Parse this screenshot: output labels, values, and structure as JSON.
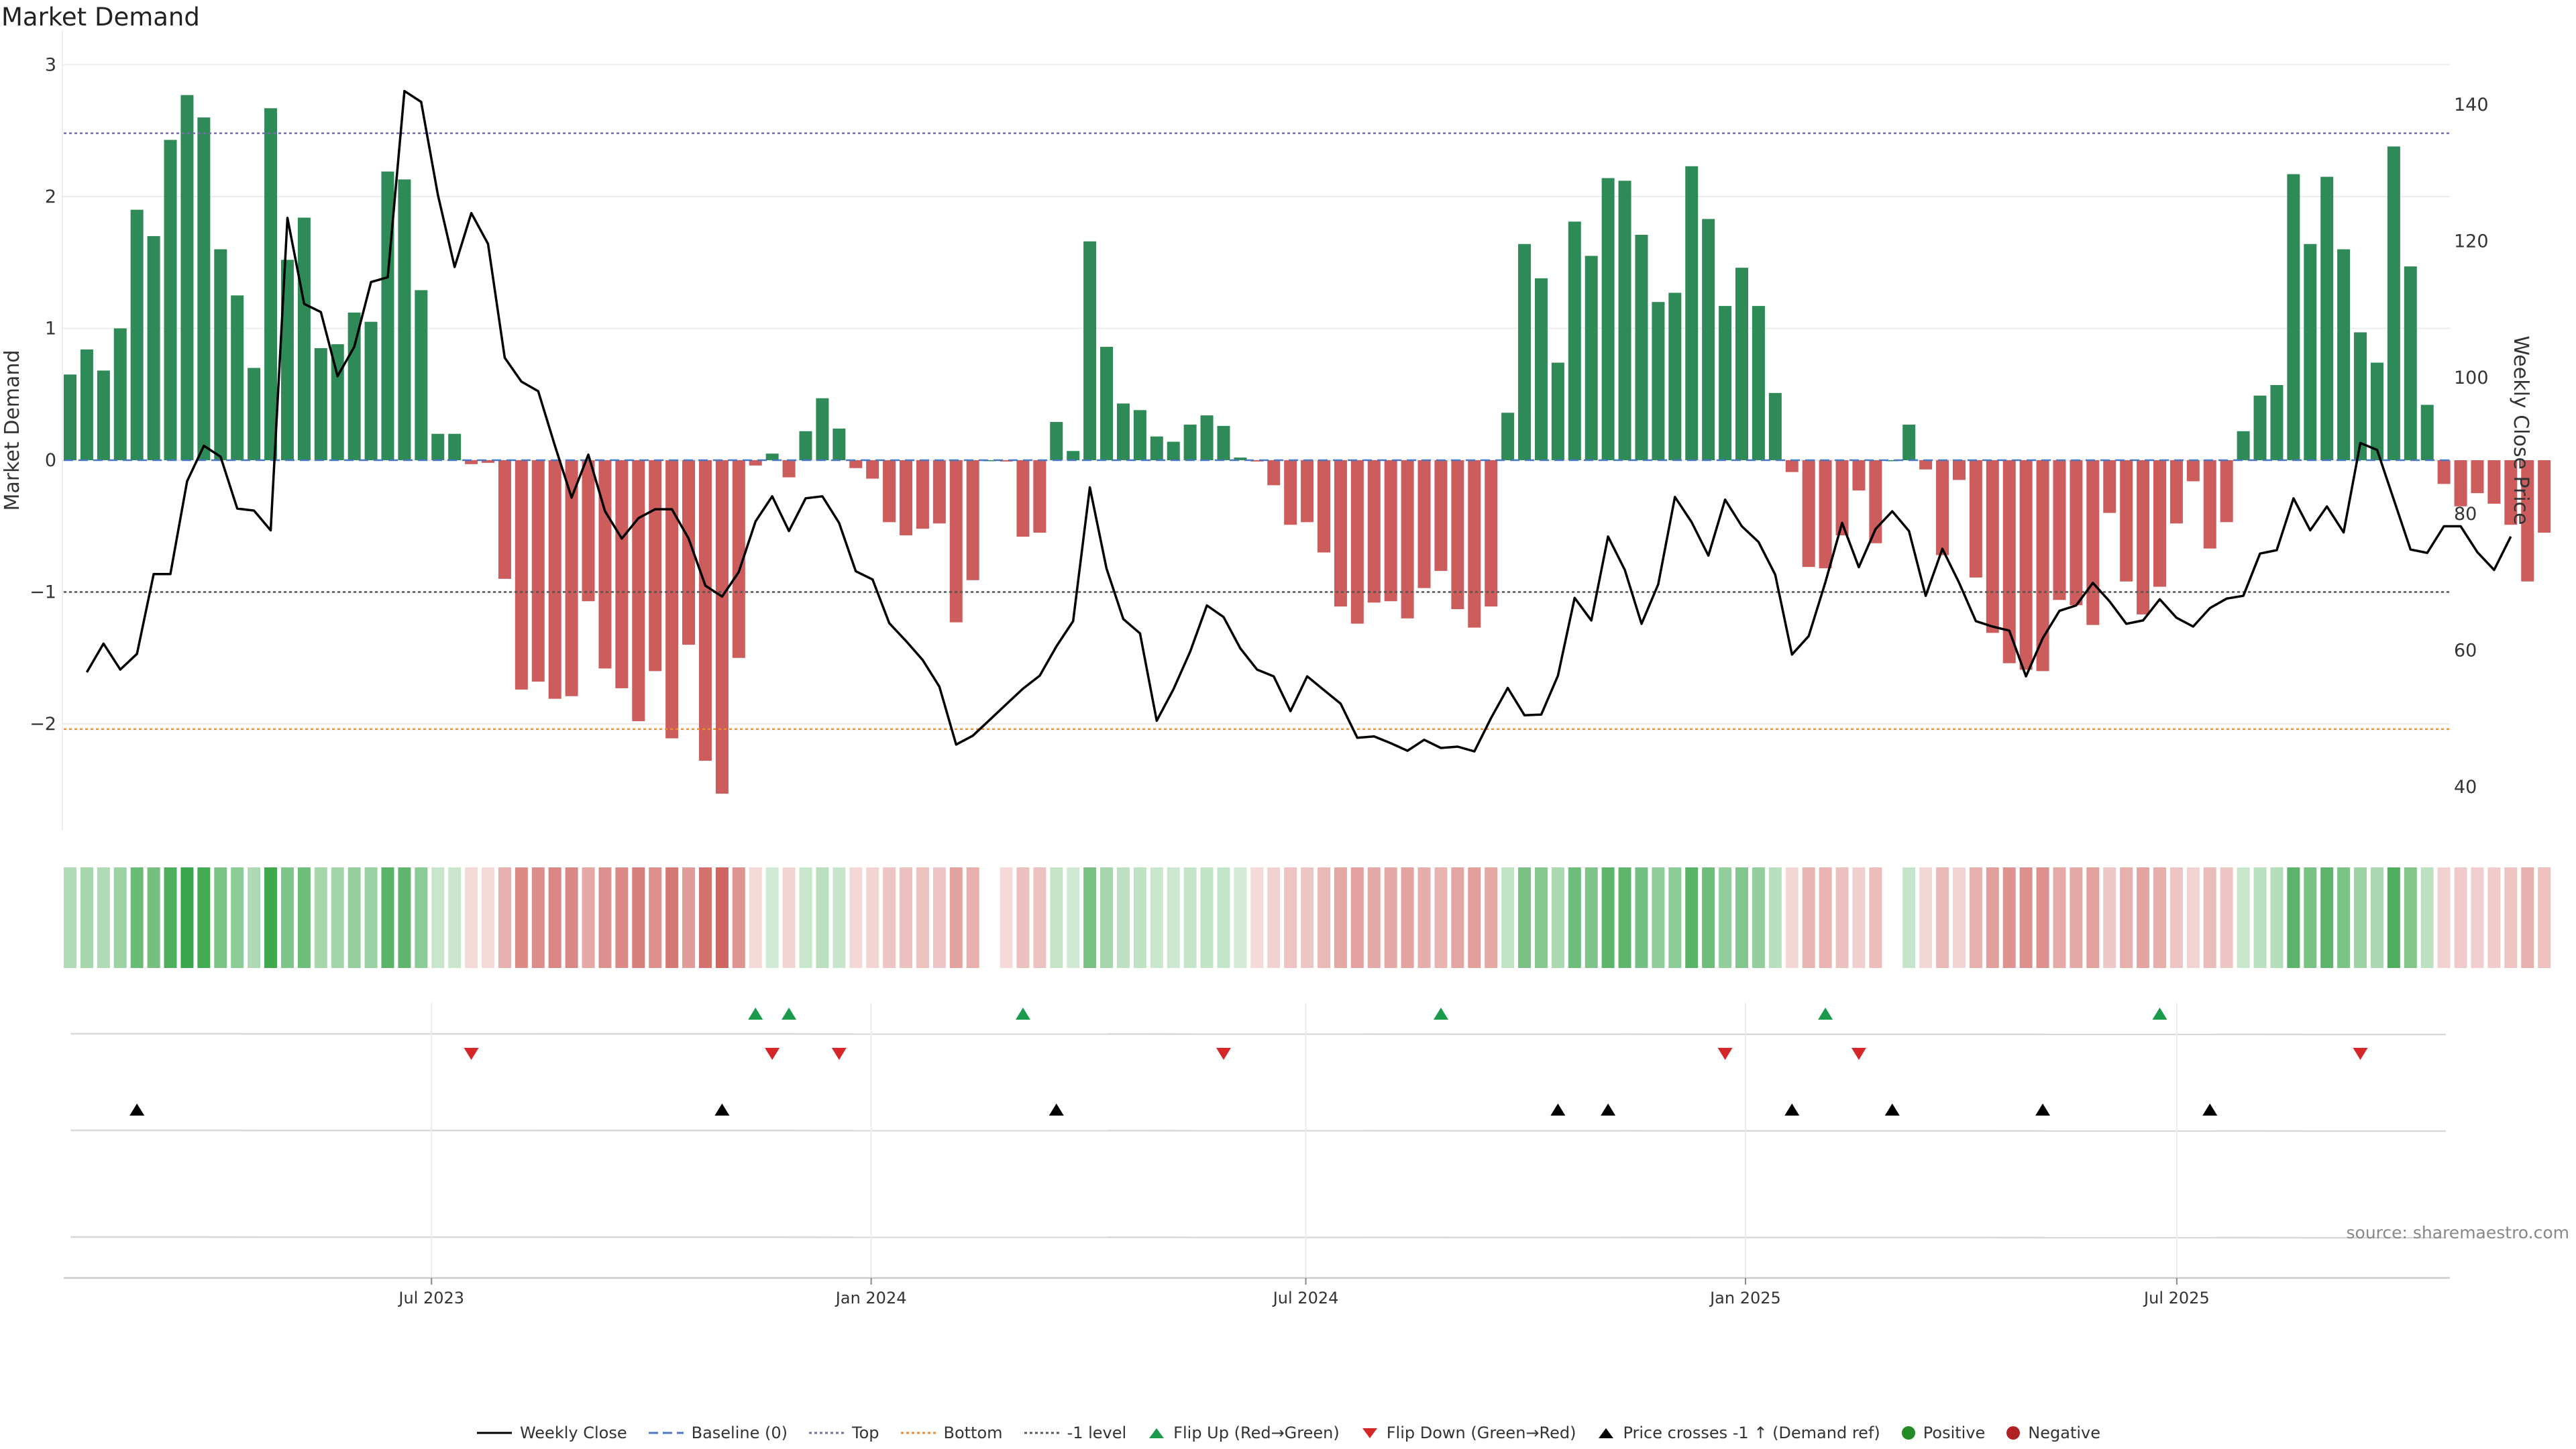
{
  "title": "Market Demand",
  "source": "source: sharemaestro.com",
  "colors": {
    "positive": "#2e8b57",
    "negative": "#cd5c5c",
    "price": "#000000",
    "top": "#7b68b5",
    "bottom": "#f08c2a",
    "minus1": "#555555",
    "flip_up": "#1a9a4a",
    "flip_down": "#d62728"
  },
  "legend": [
    {
      "key": "weekly_close",
      "label": "Weekly Close"
    },
    {
      "key": "baseline",
      "label": "Baseline (0)"
    },
    {
      "key": "top",
      "label": "Top"
    },
    {
      "key": "bottom",
      "label": "Bottom"
    },
    {
      "key": "minus1",
      "label": "-1 level"
    },
    {
      "key": "flip_up",
      "label": "Flip Up (Red→Green)"
    },
    {
      "key": "flip_down",
      "label": "Flip Down (Green→Red)"
    },
    {
      "key": "price_cross",
      "label": "Price crosses -1 ↑ (Demand ref)"
    },
    {
      "key": "positive",
      "label": "Positive"
    },
    {
      "key": "negative",
      "label": "Negative"
    }
  ],
  "chart_data": {
    "type": "bar",
    "title": "Market Demand",
    "ylabel": "Market Demand",
    "y2label": "Weekly Close Price",
    "ylim": [
      -2.8,
      3
    ],
    "y2lim": [
      37.5,
      145
    ],
    "yticks": [
      3,
      2,
      1,
      0,
      -1,
      -2
    ],
    "ytick_labels": [
      "3",
      "2",
      "1",
      "0",
      "−1",
      "−2"
    ],
    "y2ticks": [
      140,
      120,
      100,
      80,
      60,
      40
    ],
    "xlim": [
      0,
      144
    ],
    "x_ticks": [
      {
        "pos": 22,
        "label": "Jul 2023"
      },
      {
        "pos": 48.3,
        "label": "Jan 2024"
      },
      {
        "pos": 74.3,
        "label": "Jul 2024"
      },
      {
        "pos": 100.6,
        "label": "Jan 2025"
      },
      {
        "pos": 126.4,
        "label": "Jul 2025"
      }
    ],
    "reference_lines": {
      "baseline": 0,
      "top": 2.48,
      "bottom": -2.04,
      "minus1": -1
    },
    "demand": [
      0.65,
      0.84,
      0.68,
      1.0,
      1.9,
      1.7,
      2.43,
      2.77,
      2.6,
      1.6,
      1.25,
      0.7,
      2.67,
      1.52,
      1.84,
      0.85,
      0.88,
      1.12,
      1.05,
      2.19,
      2.13,
      1.29,
      0.2,
      0.2,
      -0.03,
      -0.02,
      -0.9,
      -1.74,
      -1.68,
      -1.81,
      -1.79,
      -1.07,
      -1.58,
      -1.73,
      -1.98,
      -1.6,
      -2.11,
      -1.4,
      -2.28,
      -2.53,
      -1.5,
      -0.04,
      0.05,
      -0.13,
      0.22,
      0.47,
      0.24,
      -0.06,
      -0.14,
      -0.47,
      -0.57,
      -0.52,
      -0.48,
      -1.23,
      -0.91,
      0,
      -0.01,
      -0.58,
      -0.55,
      0.29,
      0.07,
      1.66,
      0.86,
      0.43,
      0.38,
      0.18,
      0.14,
      0.27,
      0.34,
      0.26,
      0.02,
      -0.01,
      -0.19,
      -0.49,
      -0.47,
      -0.7,
      -1.11,
      -1.24,
      -1.08,
      -1.07,
      -1.2,
      -0.97,
      -0.84,
      -1.13,
      -1.27,
      -1.11,
      0.36,
      1.64,
      1.38,
      0.74,
      1.81,
      1.55,
      2.14,
      2.12,
      1.71,
      1.2,
      1.27,
      2.23,
      1.83,
      1.17,
      1.46,
      1.17,
      0.51,
      -0.09,
      -0.81,
      -0.82,
      -0.57,
      -0.23,
      -0.63,
      0,
      0.27,
      -0.07,
      -0.72,
      -0.15,
      -0.89,
      -1.31,
      -1.54,
      -1.59,
      -1.6,
      -1.06,
      -1.1,
      -1.25,
      -0.4,
      -0.92,
      -1.17,
      -0.96,
      -0.48,
      -0.16,
      -0.67,
      -0.47,
      0.22,
      0.49,
      0.57,
      2.17,
      1.64,
      2.15,
      1.6,
      0.97,
      0.74,
      2.38,
      1.47,
      0.42,
      -0.18,
      -0.35,
      -0.25,
      -0.33,
      -0.49,
      -0.92,
      -0.55
    ],
    "weekly_close": [
      null,
      56.8,
      61,
      57.2,
      59.5,
      71.2,
      71.2,
      84.8,
      90,
      88.4,
      80.8,
      80.5,
      77.6,
      123.4,
      110.8,
      109.6,
      100.2,
      104.5,
      114,
      114.7,
      142,
      140.4,
      126.8,
      116.2,
      124.1,
      119.6,
      102.9,
      99.4,
      98,
      90,
      82.4,
      88.7,
      80.4,
      76.4,
      79.4,
      80.7,
      80.7,
      76.4,
      69.5,
      67.9,
      71.5,
      78.9,
      82.6,
      77.5,
      82.3,
      82.6,
      78.7,
      71.6,
      70.4,
      64,
      61.4,
      58.6,
      54.7,
      46.2,
      47.5,
      49.8,
      52.1,
      54.4,
      56.3,
      60.6,
      64.3,
      83.9,
      72,
      64.6,
      62.5,
      49.7,
      54.3,
      59.8,
      66.6,
      64.9,
      60.3,
      57.2,
      56.2,
      51.1,
      56.2,
      54.2,
      52.2,
      47.2,
      47.4,
      46.4,
      45.3,
      46.9,
      45.7,
      45.9,
      45.2,
      50.1,
      54.5,
      50.5,
      50.6,
      56.3,
      67.7,
      64.4,
      76.7,
      71.8,
      63.9,
      69.7,
      82.5,
      78.8,
      73.9,
      82.1,
      78.2,
      75.9,
      71.1,
      59.4,
      62.1,
      70,
      78.7,
      72.2,
      77.8,
      80.4,
      77.5,
      68,
      74.9,
      69.9,
      64.3,
      63.5,
      62.9,
      56.2,
      61.8,
      65.8,
      66.6,
      69.9,
      67.2,
      63.9,
      64.4,
      67.5,
      64.8,
      63.5,
      66.2,
      67.6,
      68,
      74.2,
      74.7,
      82.3,
      77.6,
      81.1,
      77.3,
      90.4,
      89.4,
      82.1,
      74.8,
      74.3,
      78.2,
      78.2,
      74.4,
      71.8,
      76.7
    ],
    "rows": {
      "flip_up": [
        41,
        43,
        57,
        82,
        105,
        125
      ],
      "flip_down": [
        24,
        42,
        46,
        69,
        99,
        107,
        137
      ],
      "price_cross": [
        4,
        39,
        59,
        89,
        92,
        103,
        109,
        118,
        128
      ]
    }
  }
}
